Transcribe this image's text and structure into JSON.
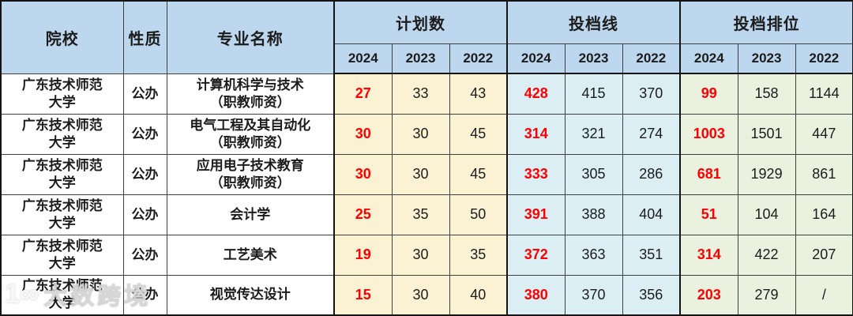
{
  "colors": {
    "header_bg": "#BDD7EE",
    "plan_bg": "#FBF1D3",
    "line_bg": "#DAEEF3",
    "rank_bg": "#EAF1DF",
    "highlight_red": "#FE0000",
    "text_dark": "#1C1C1C",
    "border_col": "#3F3F3F"
  },
  "table": {
    "headers": {
      "institution": "院校",
      "nature": "性质",
      "major": "专业名称",
      "groups": [
        {
          "label": "计划数",
          "years": [
            "2024",
            "2023",
            "2022"
          ]
        },
        {
          "label": "投档线",
          "years": [
            "2024",
            "2023",
            "2022"
          ]
        },
        {
          "label": "投档排位",
          "years": [
            "2024",
            "2023",
            "2022"
          ]
        }
      ]
    },
    "rows": [
      {
        "institution_l1": "广东技术师范",
        "institution_l2": "大学",
        "nature": "公办",
        "major_l1": "计算机科学与技术",
        "major_l2": "（职教师资）",
        "plan": [
          "27",
          "33",
          "43"
        ],
        "line": [
          "428",
          "415",
          "370"
        ],
        "rank": [
          "99",
          "158",
          "1144"
        ]
      },
      {
        "institution_l1": "广东技术师范",
        "institution_l2": "大学",
        "nature": "公办",
        "major_l1": "电气工程及其自动化",
        "major_l2": "（职教师资）",
        "plan": [
          "30",
          "30",
          "45"
        ],
        "line": [
          "314",
          "321",
          "274"
        ],
        "rank": [
          "1003",
          "1501",
          "447"
        ]
      },
      {
        "institution_l1": "广东技术师范",
        "institution_l2": "大学",
        "nature": "公办",
        "major_l1": "应用电子技术教育",
        "major_l2": "（职教师资）",
        "plan": [
          "30",
          "30",
          "45"
        ],
        "line": [
          "333",
          "305",
          "286"
        ],
        "rank": [
          "681",
          "1929",
          "861"
        ]
      },
      {
        "institution_l1": "广东技术师范",
        "institution_l2": "大学",
        "nature": "公办",
        "major_l1": "会计学",
        "major_l2": "",
        "plan": [
          "25",
          "35",
          "50"
        ],
        "line": [
          "391",
          "388",
          "404"
        ],
        "rank": [
          "51",
          "104",
          "164"
        ]
      },
      {
        "institution_l1": "广东技术师范",
        "institution_l2": "大学",
        "nature": "公办",
        "major_l1": "工艺美术",
        "major_l2": "",
        "plan": [
          "19",
          "30",
          "35"
        ],
        "line": [
          "372",
          "363",
          "351"
        ],
        "rank": [
          "314",
          "422",
          "207"
        ]
      },
      {
        "institution_l1": "广东技术师范",
        "institution_l2": "大学",
        "nature": "公办",
        "major_l1": "视觉传达设计",
        "major_l2": "",
        "plan": [
          "15",
          "30",
          "40"
        ],
        "line": [
          "380",
          "370",
          "356"
        ],
        "rank": [
          "203",
          "279",
          "/"
        ]
      }
    ]
  },
  "watermark": {
    "logo_glyph": "1∞",
    "text": "大数跨境"
  }
}
